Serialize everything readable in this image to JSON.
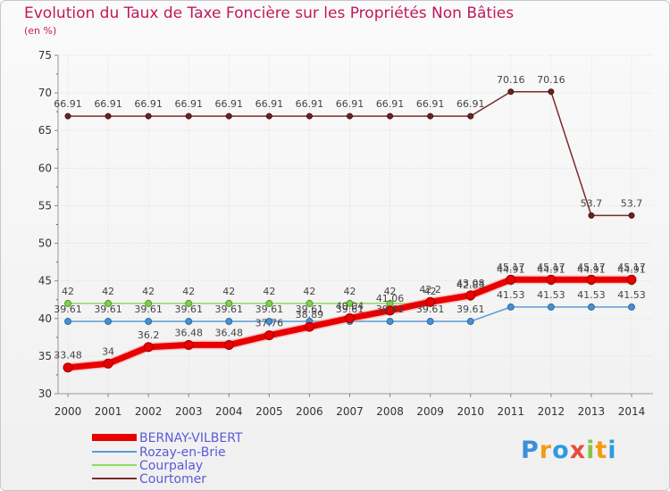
{
  "title": "Evolution du Taux de Taxe Foncière sur les Propriétés Non Bâties",
  "unit": "(en %)",
  "logo": {
    "letters": [
      "P",
      "r",
      "o",
      "x",
      "i",
      "t",
      "i"
    ],
    "colors": [
      "#3a8fd8",
      "#f39c12",
      "#2e9be0",
      "#e74c3c",
      "#8bc34a",
      "#f39c12",
      "#2e9be0"
    ]
  },
  "chart_data": {
    "type": "line",
    "title": "Evolution du Taux de Taxe Foncière sur les Propriétés Non Bâties",
    "ylabel": "(en %)",
    "xlabel": "",
    "ylim": [
      30,
      75
    ],
    "yticks": [
      30,
      35,
      40,
      45,
      50,
      55,
      60,
      65,
      70,
      75
    ],
    "grid": true,
    "legend_position": "bottom-left",
    "x": [
      "2000",
      "2001",
      "2002",
      "2003",
      "2004",
      "2005",
      "2006",
      "2007",
      "2008",
      "2009",
      "2010",
      "2011",
      "2012",
      "2013",
      "2014"
    ],
    "series": [
      {
        "name": "BERNAY-VILBERT",
        "color": "#e80000",
        "values": [
          33.48,
          34,
          36.2,
          36.48,
          36.48,
          37.76,
          38.89,
          40.04,
          41.06,
          42.2,
          43.08,
          45.17,
          45.17,
          45.17,
          45.17
        ],
        "labels": [
          "33.48",
          "34",
          "36.2",
          "36.48",
          "36.48",
          "37.76",
          "38.89",
          "40.04",
          "41.06",
          "42.2",
          "43.08",
          "45.17",
          "45.17",
          "45.17",
          "45.17"
        ]
      },
      {
        "name": "Rozay-en-Brie",
        "color": "#5b9bd5",
        "values": [
          39.61,
          39.61,
          39.61,
          39.61,
          39.61,
          39.61,
          39.61,
          39.61,
          39.61,
          39.61,
          39.61,
          41.53,
          41.53,
          41.53,
          41.53
        ],
        "labels": [
          "39.61",
          "39.61",
          "39.61",
          "39.61",
          "39.61",
          "39.61",
          "39.61",
          "39.61",
          "39.61",
          "39.61",
          "39.61",
          "41.53",
          "41.53",
          "41.53",
          "41.53"
        ]
      },
      {
        "name": "Courpalay",
        "color": "#8bdc5a",
        "values": [
          42,
          42,
          42,
          42,
          42,
          42,
          42,
          42,
          42,
          42,
          42.83,
          44.91,
          44.91,
          44.91,
          44.91
        ],
        "labels": [
          "42",
          "42",
          "42",
          "42",
          "42",
          "42",
          "42",
          "42",
          "42",
          "42",
          "42.83",
          "44.91",
          "44.91",
          "44.91",
          "44.91"
        ]
      },
      {
        "name": "Courtomer",
        "color": "#7b2c2c",
        "values": [
          66.91,
          66.91,
          66.91,
          66.91,
          66.91,
          66.91,
          66.91,
          66.91,
          66.91,
          66.91,
          66.91,
          70.16,
          70.16,
          53.7,
          53.7
        ],
        "labels": [
          "66.91",
          "66.91",
          "66.91",
          "66.91",
          "66.91",
          "66.91",
          "66.91",
          "66.91",
          "66.91",
          "66.91",
          "66.91",
          "70.16",
          "70.16",
          "53.7",
          "53.7"
        ]
      }
    ]
  }
}
